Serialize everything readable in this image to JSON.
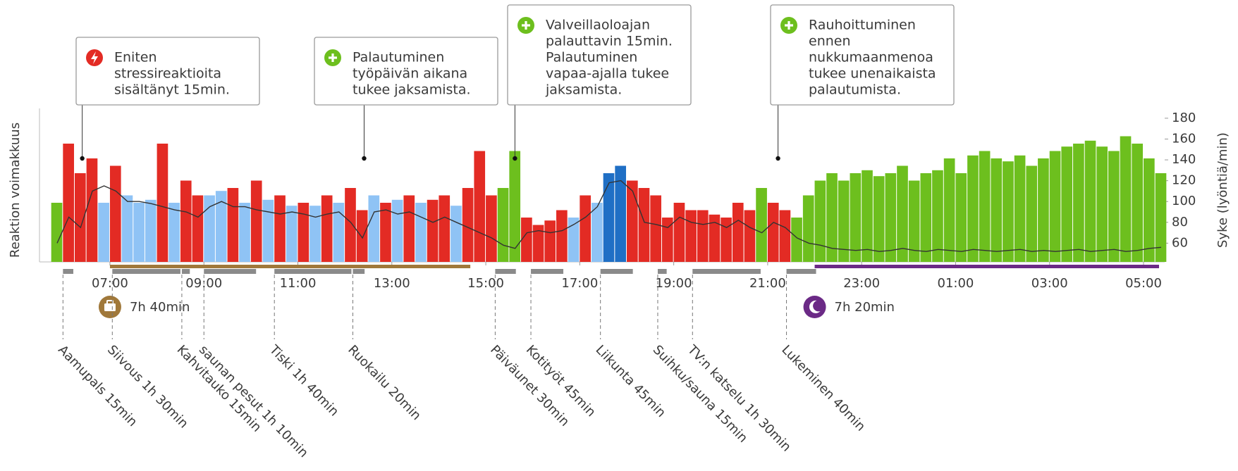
{
  "chart_data": {
    "type": "bar",
    "ylabel": "Reaktion voimakkuus",
    "y2label": "Syke (lyöntiä/min)",
    "xlim": [
      5.5,
      29.45
    ],
    "ylim": [
      0,
      100
    ],
    "y2lim": [
      42,
      184
    ],
    "xticks": [
      {
        "value": 7,
        "label": "07:00"
      },
      {
        "value": 9,
        "label": "09:00"
      },
      {
        "value": 11,
        "label": "11:00"
      },
      {
        "value": 13,
        "label": "13:00"
      },
      {
        "value": 15,
        "label": "15:00"
      },
      {
        "value": 17,
        "label": "17:00"
      },
      {
        "value": 19,
        "label": "19:00"
      },
      {
        "value": 21,
        "label": "21:00"
      },
      {
        "value": 23,
        "label": "23:00"
      },
      {
        "value": 25,
        "label": "01:00"
      },
      {
        "value": 27,
        "label": "03:00"
      },
      {
        "value": 29,
        "label": "05:00"
      }
    ],
    "y2ticks": [
      60,
      80,
      100,
      120,
      140,
      160,
      180
    ],
    "series": [
      {
        "color": "#e32b24",
        "x": [
          6,
          6.25,
          6.5,
          7,
          8,
          8.5,
          8.75,
          9.5,
          10,
          10.5,
          11,
          11.5,
          12,
          12.25,
          12.75,
          13.25,
          13.75,
          14,
          14.5,
          14.75,
          15,
          15.75,
          16,
          16.25,
          16.5,
          17,
          18,
          18.25,
          18.5,
          18.75,
          19,
          19.25,
          19.5,
          19.75,
          20,
          20.25,
          20.5,
          21,
          21.25
        ],
        "values": [
          80,
          60,
          70,
          65,
          80,
          55,
          45,
          50,
          55,
          45,
          40,
          45,
          50,
          35,
          40,
          45,
          42,
          45,
          50,
          75,
          45,
          30,
          25,
          28,
          35,
          45,
          55,
          50,
          45,
          30,
          40,
          35,
          35,
          32,
          30,
          40,
          35,
          40,
          35
        ]
      },
      {
        "color": "#6dbf1e",
        "x": [
          5.75,
          15.25,
          15.5,
          20.75,
          21.5,
          21.75,
          22,
          22.25,
          22.5,
          22.75,
          23,
          23.25,
          23.5,
          23.75,
          24,
          24.25,
          24.5,
          24.75,
          25,
          25.25,
          25.5,
          25.75,
          26,
          26.25,
          26.5,
          26.75,
          27,
          27.25,
          27.5,
          27.75,
          28,
          28.25,
          28.5,
          28.75,
          29,
          29.25
        ],
        "values": [
          40,
          50,
          75,
          50,
          30,
          45,
          55,
          60,
          55,
          60,
          62,
          58,
          60,
          65,
          55,
          60,
          62,
          70,
          60,
          72,
          75,
          70,
          68,
          72,
          65,
          70,
          75,
          78,
          80,
          82,
          78,
          75,
          85,
          80,
          70,
          60
        ]
      },
      {
        "color": "#8fc3f5",
        "x": [
          6.75,
          7.25,
          7.5,
          7.75,
          8.25,
          9,
          9.25,
          9.75,
          10.25,
          10.75,
          11.25,
          11.75,
          12.5,
          13,
          13.5,
          14.25,
          16.75,
          17.25
        ],
        "values": [
          40,
          45,
          40,
          42,
          40,
          45,
          48,
          40,
          42,
          38,
          38,
          40,
          45,
          42,
          40,
          38,
          30,
          40
        ]
      },
      {
        "color": "#1f6fc5",
        "x": [
          17.5,
          17.75
        ],
        "values": [
          60,
          65
        ]
      },
      {
        "type": "line",
        "axis": "y2",
        "color": "#333333",
        "x": [
          5.75,
          6,
          6.25,
          6.5,
          6.75,
          7,
          7.25,
          7.5,
          7.75,
          8,
          8.25,
          8.5,
          8.75,
          9,
          9.25,
          9.5,
          9.75,
          10,
          10.25,
          10.5,
          10.75,
          11,
          11.25,
          11.5,
          11.75,
          12,
          12.25,
          12.5,
          12.75,
          13,
          13.25,
          13.5,
          13.75,
          14,
          14.25,
          14.5,
          14.75,
          15,
          15.25,
          15.5,
          15.75,
          16,
          16.25,
          16.5,
          16.75,
          17,
          17.25,
          17.5,
          17.75,
          18,
          18.25,
          18.5,
          18.75,
          19,
          19.25,
          19.5,
          19.75,
          20,
          20.25,
          20.5,
          20.75,
          21,
          21.25,
          21.5,
          21.75,
          22,
          22.25,
          22.5,
          22.75,
          23,
          23.25,
          23.5,
          23.75,
          24,
          24.25,
          24.5,
          24.75,
          25,
          25.25,
          25.5,
          25.75,
          26,
          26.25,
          26.5,
          26.75,
          27,
          27.25,
          27.5,
          27.75,
          28,
          28.25,
          28.5,
          28.75,
          29,
          29.25
        ],
        "values": [
          60,
          85,
          75,
          110,
          115,
          110,
          100,
          100,
          98,
          95,
          92,
          90,
          85,
          95,
          100,
          95,
          95,
          92,
          90,
          88,
          90,
          88,
          85,
          88,
          90,
          80,
          65,
          90,
          92,
          88,
          90,
          85,
          80,
          85,
          80,
          75,
          70,
          65,
          58,
          55,
          70,
          72,
          70,
          72,
          78,
          85,
          95,
          118,
          120,
          110,
          80,
          78,
          75,
          85,
          80,
          78,
          80,
          75,
          82,
          75,
          70,
          80,
          75,
          65,
          60,
          58,
          55,
          54,
          53,
          54,
          52,
          53,
          55,
          53,
          52,
          54,
          53,
          52,
          54,
          53,
          52,
          53,
          54,
          52,
          53,
          52,
          53,
          54,
          52,
          53,
          54,
          52,
          53,
          55,
          56
        ]
      }
    ],
    "activity_color": "#8a8a8a",
    "activities": [
      {
        "label": "Aamupals 15min",
        "start": 6.0,
        "end": 6.25
      },
      {
        "label": "Siivous 1h 30min",
        "start": 7.05,
        "end": 8.53
      },
      {
        "label": "Kahvitauko 15min",
        "start": 8.53,
        "end": 8.73
      },
      {
        "label": "saunan pesut 1h 10min",
        "start": 9.0,
        "end": 10.14
      },
      {
        "label": "Tiski 1h 40min",
        "start": 10.5,
        "end": 12.17
      },
      {
        "label": "Ruokailu 20min",
        "start": 12.17,
        "end": 12.45
      },
      {
        "label": "Päiväunet 30min",
        "start": 15.2,
        "end": 15.67
      },
      {
        "label": "Kotityöt 45min",
        "start": 15.96,
        "end": 16.68
      },
      {
        "label": "Liikunta 45min",
        "start": 17.44,
        "end": 18.16
      },
      {
        "label": "Suihku/sauna 15min",
        "start": 18.66,
        "end": 18.88
      },
      {
        "label": "TV:n katselu 1h 30min",
        "start": 19.4,
        "end": 20.88
      },
      {
        "label": "Lukeminen 40min",
        "start": 21.4,
        "end": 22.06
      }
    ],
    "periods": [
      {
        "label": "7h 40min",
        "start": 7.0,
        "end": 14.67,
        "color": "#a0783a",
        "icon": "briefcase"
      },
      {
        "label": "7h 20min",
        "start": 22.0,
        "end": 29.33,
        "color": "#6b2a86",
        "icon": "moon"
      }
    ],
    "annotations": [
      {
        "lines": [
          "Eniten",
          "stressireaktioita",
          "sisältänyt 15min."
        ],
        "icon": "bolt",
        "color": "#e32b24",
        "x": 6.41,
        "y": 70
      },
      {
        "lines": [
          "Palautuminen",
          "työpäivän aikana",
          "tukee jaksamista."
        ],
        "icon": "plus",
        "color": "#6dbf1e",
        "x": 12.41,
        "y": 70
      },
      {
        "lines": [
          "Valveillaoloajan",
          "palauttavin 15min.",
          "Palautuminen",
          "vapaa-ajalla tukee",
          "jaksamista."
        ],
        "icon": "plus",
        "color": "#6dbf1e",
        "x": 15.62,
        "y": 70
      },
      {
        "lines": [
          "Rauhoittuminen",
          "ennen",
          "nukkumaanmenoa",
          "tukee unenaikaista",
          "palautumista."
        ],
        "icon": "plus",
        "color": "#6dbf1e",
        "x": 21.22,
        "y": 70
      }
    ]
  }
}
